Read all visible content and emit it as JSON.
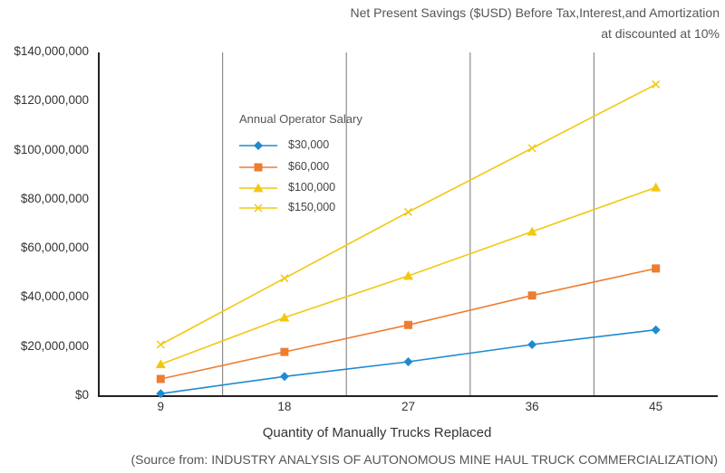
{
  "chart_data": {
    "type": "line",
    "title": "Net Present Savings ($USD) Before Tax,Interest,and Amortization",
    "subtitle": "at discounted at 10%",
    "xlabel": "Quantity of Manually Trucks Replaced",
    "ylabel": "",
    "categories": [
      "9",
      "18",
      "27",
      "36",
      "45"
    ],
    "ylim": [
      0,
      140000000
    ],
    "ytick_values": [
      0,
      20000000,
      40000000,
      60000000,
      80000000,
      100000000,
      120000000,
      140000000
    ],
    "ytick_labels": [
      "$0",
      "$20,000,000",
      "$40,000,000",
      "$60,000,000",
      "$80,000,000",
      "$100,000,000",
      "$120,000,000",
      "$140,000,000"
    ],
    "legend_title": "Annual Operator Salary",
    "legend_position": "upper-left inside plot",
    "grid": "vertical lines between categories",
    "series": [
      {
        "name": "$30,000",
        "color": "#1f8ad1",
        "marker": "diamond",
        "values": [
          1000000,
          8000000,
          14000000,
          21000000,
          27000000
        ]
      },
      {
        "name": "$60,000",
        "color": "#ed7d31",
        "marker": "square",
        "values": [
          7000000,
          18000000,
          29000000,
          41000000,
          52000000
        ]
      },
      {
        "name": "$100,000",
        "color": "#f2c80f",
        "marker": "triangle",
        "values": [
          13000000,
          32000000,
          49000000,
          67000000,
          85000000
        ]
      },
      {
        "name": "$150,000",
        "color": "#f2c80f",
        "marker": "x",
        "values": [
          21000000,
          48000000,
          75000000,
          101000000,
          127000000
        ]
      }
    ]
  },
  "source": "(Source from: INDUSTRY ANALYSIS OF AUTONOMOUS MINE HAUL TRUCK COMMERCIALIZATION)"
}
